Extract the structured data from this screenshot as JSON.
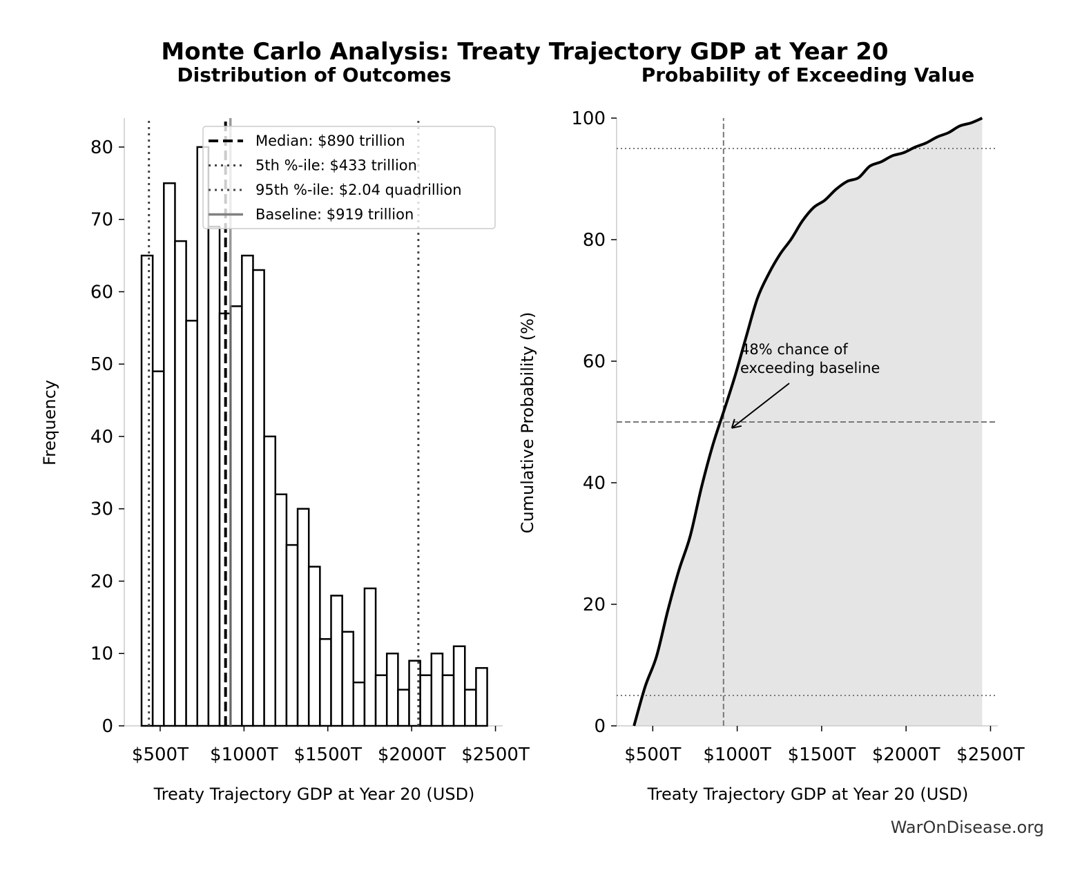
{
  "title": "Monte Carlo Analysis: Treaty Trajectory GDP at Year 20",
  "watermark": "WarOnDisease.org",
  "chart_data": [
    {
      "type": "bar",
      "subtitle": "Distribution of Outcomes",
      "xlabel": "Treaty Trajectory GDP at Year 20 (USD)",
      "ylabel": "Frequency",
      "unit": "trillion USD",
      "bin_start": 389,
      "bin_width": 66.5,
      "values": [
        65,
        49,
        75,
        67,
        56,
        80,
        69,
        57,
        58,
        65,
        63,
        40,
        32,
        25,
        30,
        22,
        12,
        18,
        13,
        6,
        19,
        7,
        10,
        5,
        9,
        7,
        10,
        7,
        11,
        5,
        8
      ],
      "xlim": [
        286,
        2543
      ],
      "ylim": [
        0,
        84
      ],
      "xticks": [
        500,
        1000,
        1500,
        2000,
        2500
      ],
      "xtick_labels": [
        "$500T",
        "$1000T",
        "$1500T",
        "$2000T",
        "$2500T"
      ],
      "yticks": [
        0,
        10,
        20,
        30,
        40,
        50,
        60,
        70,
        80
      ],
      "yticklabels": [
        "0",
        "10",
        "20",
        "30",
        "40",
        "50",
        "60",
        "70",
        "80"
      ],
      "lines": [
        {
          "label": "Median: $890 trillion",
          "x": 890,
          "style": "dashed",
          "color": "#000000"
        },
        {
          "label": "5th %-ile: $433 trillion",
          "x": 433,
          "style": "dotted",
          "color": "#444444"
        },
        {
          "label": "95th %-ile: $2.04 quadrillion",
          "x": 2040,
          "style": "dotted",
          "color": "#444444"
        },
        {
          "label": "Baseline: $919 trillion",
          "x": 919,
          "style": "solid",
          "color": "#808080"
        }
      ],
      "legend_position": "top-right"
    },
    {
      "type": "area",
      "subtitle": "Probability of Exceeding Value",
      "xlabel": "Treaty Trajectory GDP at Year 20 (USD)",
      "ylabel": "Cumulative Probability (%)",
      "xlim": [
        286,
        2543
      ],
      "ylim": [
        0,
        100
      ],
      "xticks": [
        500,
        1000,
        1500,
        2000,
        2500
      ],
      "xtick_labels": [
        "$500T",
        "$1000T",
        "$1500T",
        "$2000T",
        "$2500T"
      ],
      "yticks": [
        0,
        20,
        40,
        60,
        80,
        100
      ],
      "yticklabels": [
        "0",
        "20",
        "40",
        "60",
        "80",
        "100"
      ],
      "baseline_x": 919,
      "hlines_dotted": [
        5,
        95
      ],
      "hline_dashed": 50,
      "annotation": {
        "text_line1": "48% chance of",
        "text_line2": "exceeding baseline",
        "point": [
          919,
          49
        ]
      },
      "fill_color": "#e5e5e5",
      "line_color": "#000000"
    }
  ]
}
